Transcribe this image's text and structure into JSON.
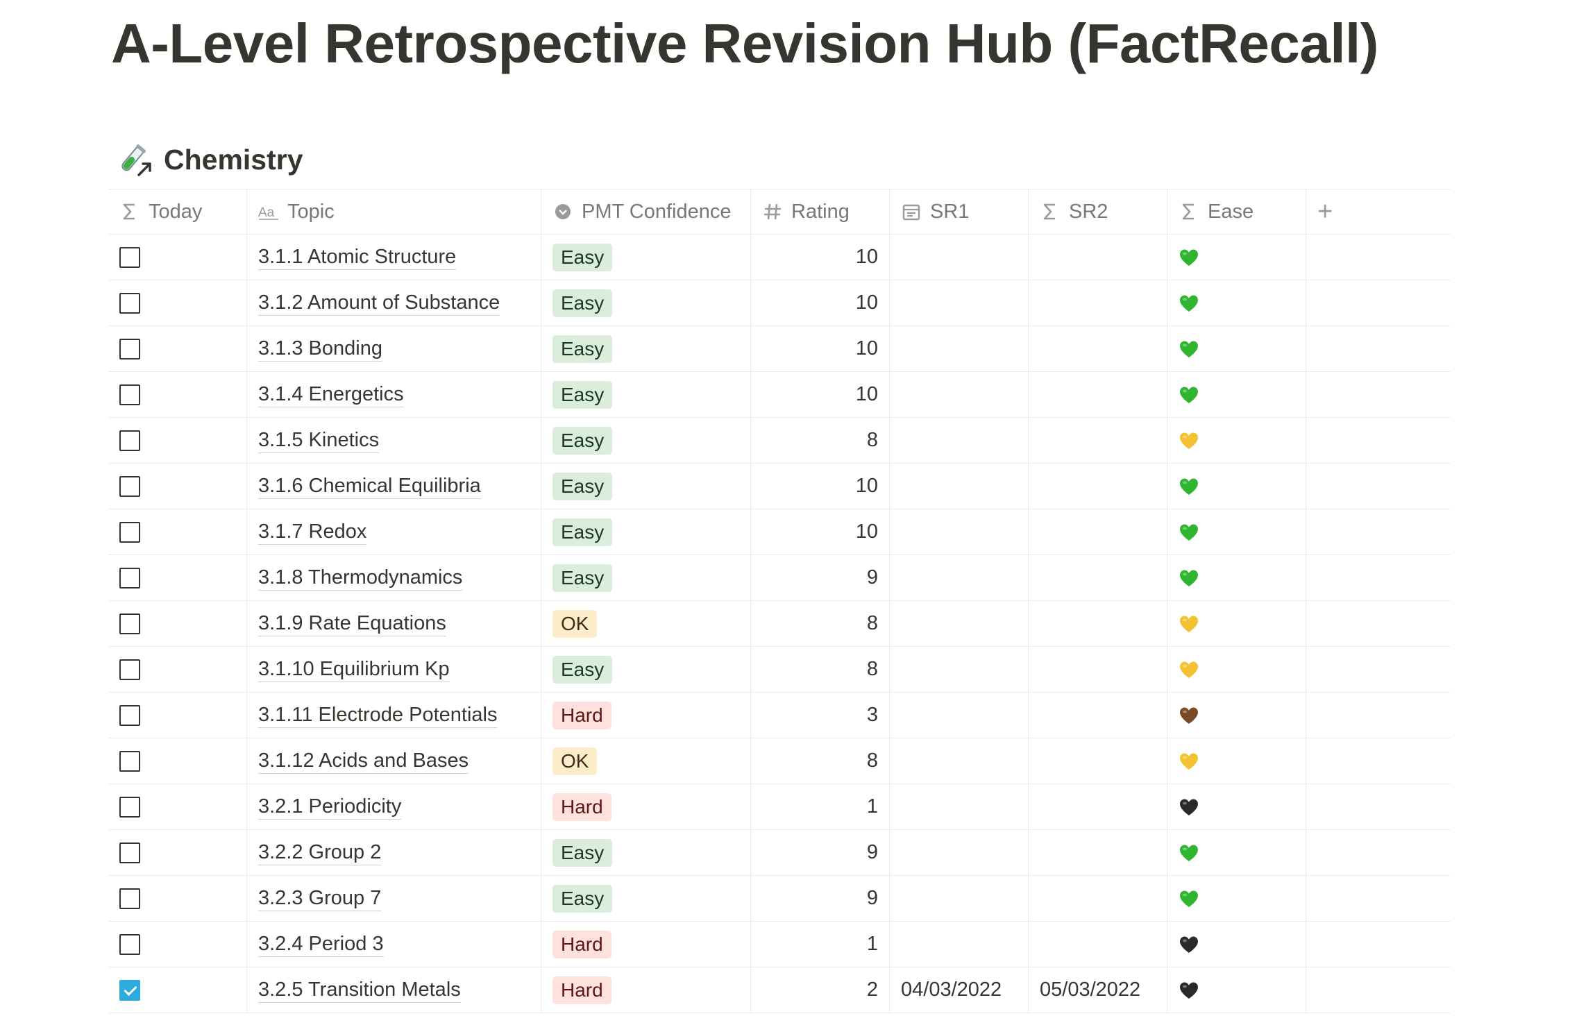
{
  "page": {
    "title": "A-Level Retrospective Revision Hub (FactRecall)"
  },
  "database": {
    "title": "Chemistry",
    "icon": "test-tube-icon"
  },
  "columns": {
    "today": "Today",
    "topic": "Topic",
    "confidence": "PMT Confidence",
    "rating": "Rating",
    "sr1": "SR1",
    "sr2": "SR2",
    "ease": "Ease"
  },
  "colors": {
    "green": "#2fb52f",
    "yellow": "#f3c233",
    "brown": "#7a4a26",
    "black": "#2a2a2a"
  },
  "rows": [
    {
      "today": false,
      "topic": "3.1.1 Atomic Structure",
      "confidence": "Easy",
      "rating": "10",
      "sr1": "",
      "sr2": "",
      "ease": "green"
    },
    {
      "today": false,
      "topic": "3.1.2 Amount of Substance",
      "confidence": "Easy",
      "rating": "10",
      "sr1": "",
      "sr2": "",
      "ease": "green"
    },
    {
      "today": false,
      "topic": "3.1.3 Bonding",
      "confidence": "Easy",
      "rating": "10",
      "sr1": "",
      "sr2": "",
      "ease": "green"
    },
    {
      "today": false,
      "topic": "3.1.4 Energetics",
      "confidence": "Easy",
      "rating": "10",
      "sr1": "",
      "sr2": "",
      "ease": "green"
    },
    {
      "today": false,
      "topic": "3.1.5 Kinetics",
      "confidence": "Easy",
      "rating": "8",
      "sr1": "",
      "sr2": "",
      "ease": "yellow"
    },
    {
      "today": false,
      "topic": "3.1.6 Chemical Equilibria",
      "confidence": "Easy",
      "rating": "10",
      "sr1": "",
      "sr2": "",
      "ease": "green"
    },
    {
      "today": false,
      "topic": "3.1.7 Redox",
      "confidence": "Easy",
      "rating": "10",
      "sr1": "",
      "sr2": "",
      "ease": "green"
    },
    {
      "today": false,
      "topic": "3.1.8 Thermodynamics",
      "confidence": "Easy",
      "rating": "9",
      "sr1": "",
      "sr2": "",
      "ease": "green"
    },
    {
      "today": false,
      "topic": "3.1.9 Rate Equations",
      "confidence": "OK",
      "rating": "8",
      "sr1": "",
      "sr2": "",
      "ease": "yellow"
    },
    {
      "today": false,
      "topic": "3.1.10 Equilibrium Kp",
      "confidence": "Easy",
      "rating": "8",
      "sr1": "",
      "sr2": "",
      "ease": "yellow"
    },
    {
      "today": false,
      "topic": "3.1.11 Electrode Potentials",
      "confidence": "Hard",
      "rating": "3",
      "sr1": "",
      "sr2": "",
      "ease": "brown"
    },
    {
      "today": false,
      "topic": "3.1.12 Acids and Bases",
      "confidence": "OK",
      "rating": "8",
      "sr1": "",
      "sr2": "",
      "ease": "yellow"
    },
    {
      "today": false,
      "topic": "3.2.1 Periodicity",
      "confidence": "Hard",
      "rating": "1",
      "sr1": "",
      "sr2": "",
      "ease": "black"
    },
    {
      "today": false,
      "topic": "3.2.2 Group 2",
      "confidence": "Easy",
      "rating": "9",
      "sr1": "",
      "sr2": "",
      "ease": "green"
    },
    {
      "today": false,
      "topic": "3.2.3 Group 7",
      "confidence": "Easy",
      "rating": "9",
      "sr1": "",
      "sr2": "",
      "ease": "green"
    },
    {
      "today": false,
      "topic": "3.2.4 Period 3",
      "confidence": "Hard",
      "rating": "1",
      "sr1": "",
      "sr2": "",
      "ease": "black"
    },
    {
      "today": true,
      "topic": "3.2.5 Transition Metals",
      "confidence": "Hard",
      "rating": "2",
      "sr1": "04/03/2022",
      "sr2": "05/03/2022",
      "ease": "black"
    }
  ]
}
